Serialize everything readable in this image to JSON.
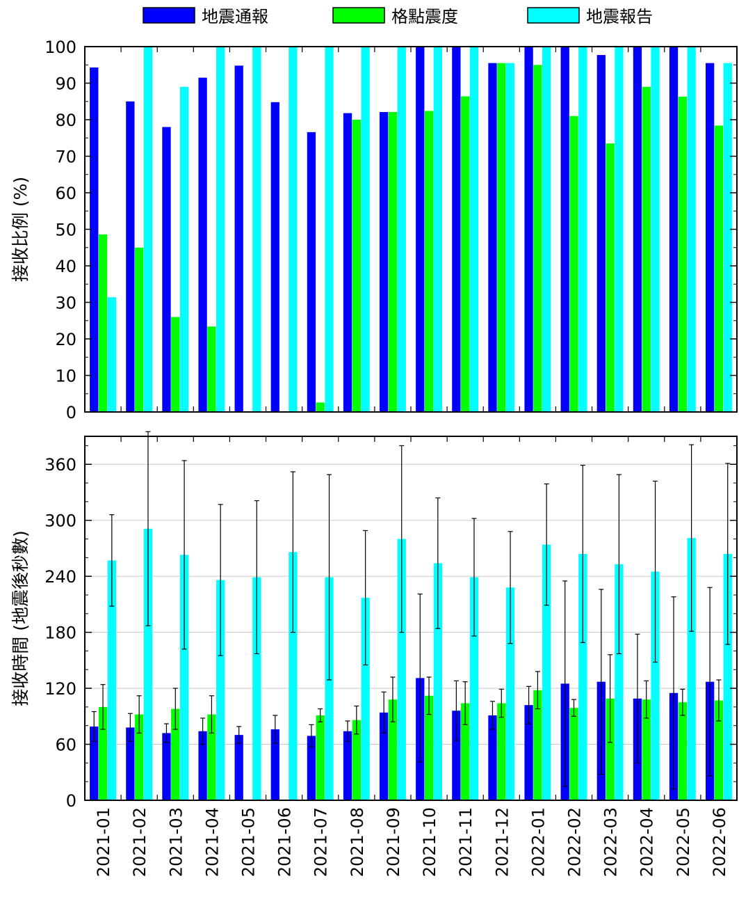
{
  "legend": [
    {
      "label": "地震通報",
      "color": "#0000ff"
    },
    {
      "label": "格點震度",
      "color": "#00ff00"
    },
    {
      "label": "地震報告",
      "color": "#00ffff"
    }
  ],
  "chart_data": [
    {
      "type": "bar",
      "ylabel": "接收比例 (%)",
      "ylim": [
        0,
        100
      ],
      "yticks": [
        0,
        10,
        20,
        30,
        40,
        50,
        60,
        70,
        80,
        90,
        100
      ],
      "grid": false,
      "categories": [
        "2021-01",
        "2021-02",
        "2021-03",
        "2021-04",
        "2021-05",
        "2021-06",
        "2021-07",
        "2021-08",
        "2021-09",
        "2021-10",
        "2021-11",
        "2021-12",
        "2022-01",
        "2022-02",
        "2022-03",
        "2022-04",
        "2022-05",
        "2022-06"
      ],
      "series": [
        {
          "name": "地震通報",
          "color": "#0000ff",
          "values": [
            94.3,
            85,
            78,
            91.5,
            94.8,
            84.8,
            76.6,
            81.8,
            82.1,
            100,
            100,
            95.5,
            100,
            100,
            97.7,
            100,
            100,
            95.5
          ]
        },
        {
          "name": "格點震度",
          "color": "#00ff00",
          "values": [
            48.6,
            45,
            26,
            23.4,
            0,
            0,
            2.6,
            80,
            82.1,
            82.4,
            86.4,
            95.5,
            95,
            81,
            73.5,
            89,
            86.3,
            78.4
          ]
        },
        {
          "name": "地震報告",
          "color": "#00ffff",
          "values": [
            31.4,
            100,
            89,
            100,
            100,
            100,
            100,
            100,
            100,
            100,
            100,
            95.5,
            100,
            100,
            100,
            100,
            100,
            95.5
          ]
        }
      ]
    },
    {
      "type": "bar",
      "ylabel": "接收時間 (地震後秒數)",
      "ylim": [
        0,
        390
      ],
      "yticks": [
        0,
        60,
        120,
        180,
        240,
        300,
        360
      ],
      "grid": true,
      "categories": [
        "2021-01",
        "2021-02",
        "2021-03",
        "2021-04",
        "2021-05",
        "2021-06",
        "2021-07",
        "2021-08",
        "2021-09",
        "2021-10",
        "2021-11",
        "2021-12",
        "2022-01",
        "2022-02",
        "2022-03",
        "2022-04",
        "2022-05",
        "2022-06"
      ],
      "series": [
        {
          "name": "地震通報",
          "color": "#0000ff",
          "values": [
            79,
            78,
            72,
            74,
            70,
            76,
            69,
            74,
            94,
            131,
            96,
            91,
            102,
            125,
            127,
            109,
            115,
            127
          ],
          "errors": [
            16,
            15,
            10,
            14,
            9,
            15,
            12,
            11,
            22,
            90,
            32,
            15,
            20,
            110,
            99,
            69,
            103,
            101
          ]
        },
        {
          "name": "格點震度",
          "color": "#00ff00",
          "values": [
            100,
            92,
            98,
            92,
            null,
            null,
            91,
            86,
            108,
            112,
            104,
            104,
            118,
            99,
            109,
            108,
            105,
            107
          ],
          "errors": [
            24,
            20,
            22,
            20,
            null,
            null,
            7,
            15,
            24,
            20,
            23,
            15,
            20,
            9,
            47,
            20,
            14,
            22
          ]
        },
        {
          "name": "地震報告",
          "color": "#00ffff",
          "values": [
            257,
            291,
            263,
            236,
            239,
            266,
            239,
            217,
            280,
            254,
            239,
            228,
            274,
            264,
            253,
            245,
            281,
            264
          ],
          "errors": [
            49,
            104,
            101,
            81,
            82,
            86,
            110,
            72,
            100,
            70,
            63,
            60,
            65,
            95,
            96,
            97,
            100,
            97
          ]
        }
      ]
    }
  ]
}
